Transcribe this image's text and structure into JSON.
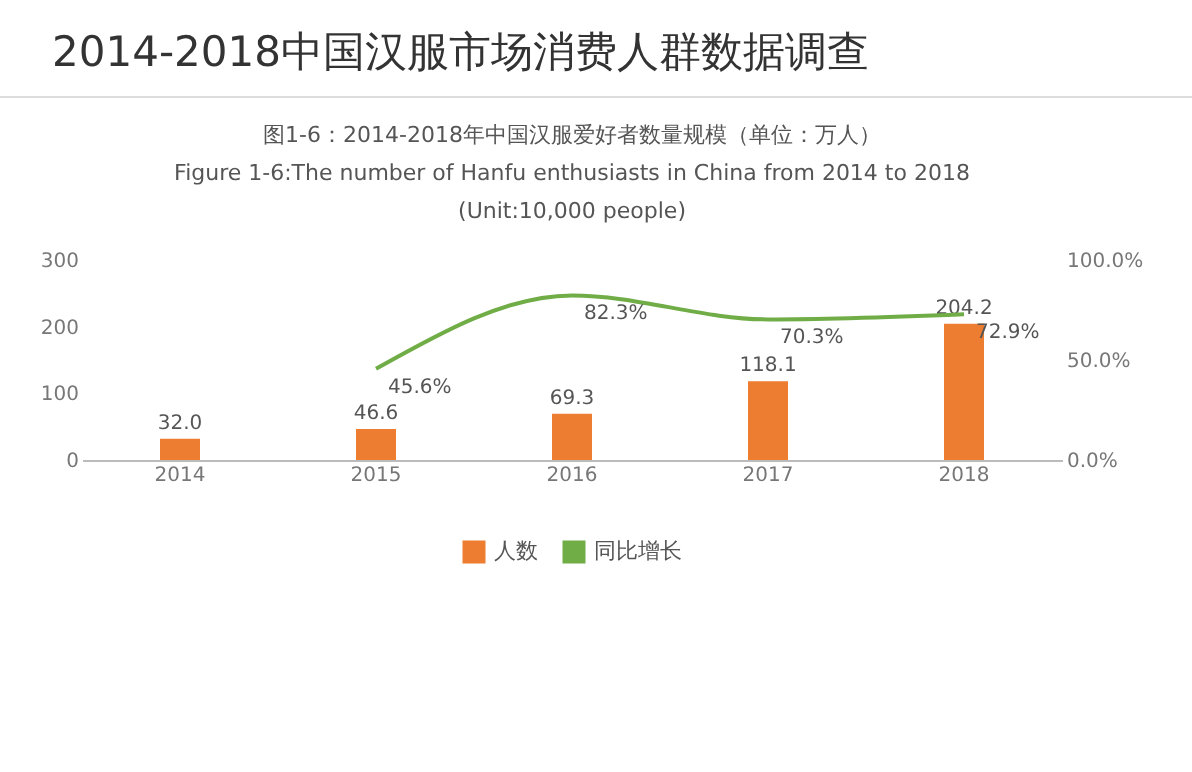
{
  "chart_data": {
    "type": "bar",
    "title": "2014-2018中国汉服市场消费人群数据调查",
    "subtitle": "图1-6：2014-2018年中国汉服爱好者数量规模（单位：万人）\nFigure 1-6:The number of Hanfu enthusiasts in China from 2014 to 2018\n(Unit:10,000 people)",
    "categories": [
      "2014",
      "2015",
      "2016",
      "2017",
      "2018"
    ],
    "series": [
      {
        "name": "人数",
        "color": "#ed7d31",
        "values": [
          32.0,
          46.6,
          69.3,
          118.1,
          204.2
        ],
        "value_labels": [
          "32.0",
          "46.6",
          "69.3",
          "118.1",
          "204.2"
        ]
      },
      {
        "name": "同比增长",
        "type": "line",
        "axis": "y2",
        "color": "#70ad47",
        "values": [
          null,
          45.6,
          82.3,
          70.3,
          72.9
        ],
        "value_labels": [
          null,
          "45.6%",
          "82.3%",
          "70.3%",
          "72.9%"
        ]
      }
    ],
    "ylim": [
      0,
      300
    ],
    "yticks": [
      0,
      100,
      200,
      300
    ],
    "y2lim": [
      0,
      100
    ],
    "y2ticks": [
      {
        "value": 0,
        "label": "0.0%"
      },
      {
        "value": 50,
        "label": "50.0%"
      },
      {
        "value": 100,
        "label": "100.0%"
      }
    ],
    "legend": "bottom",
    "grid": false
  }
}
